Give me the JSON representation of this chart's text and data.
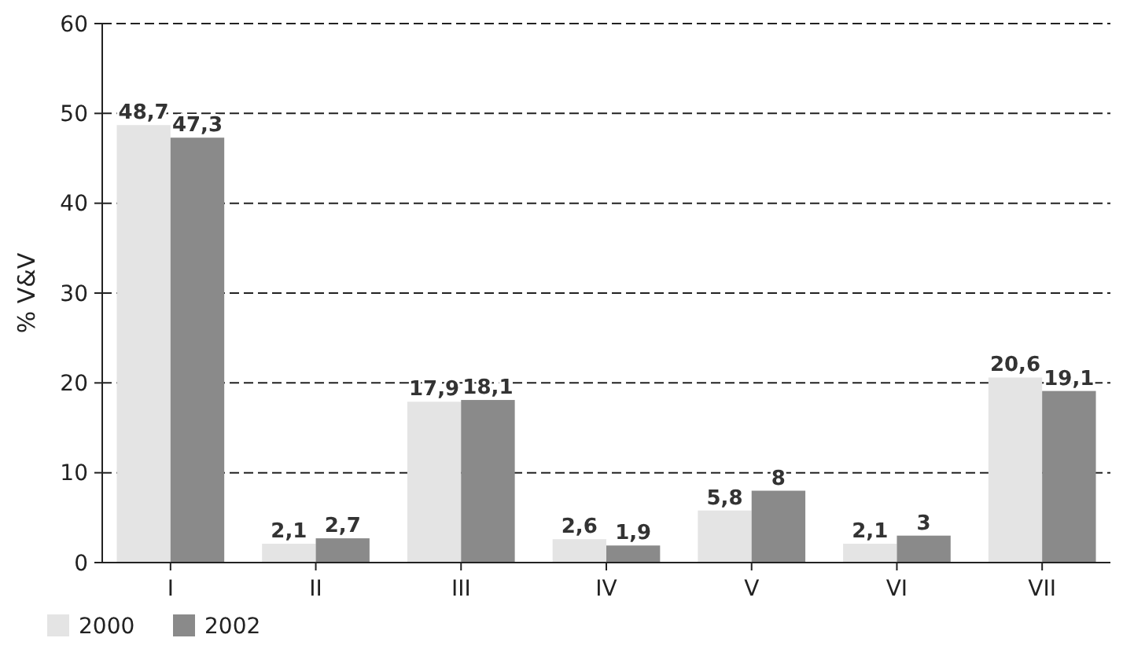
{
  "chart_data": {
    "type": "bar",
    "ylabel": "% V&V",
    "categories": [
      "I",
      "II",
      "III",
      "IV",
      "V",
      "VI",
      "VII"
    ],
    "series": [
      {
        "name": "2000",
        "color": "#e4e4e4",
        "values": [
          48.7,
          2.1,
          17.9,
          2.6,
          5.8,
          2.1,
          20.6
        ],
        "value_labels": [
          "48,7",
          "2,1",
          "17,9",
          "2,6",
          "5,8",
          "2,1",
          "20,6"
        ]
      },
      {
        "name": "2002",
        "color": "#8a8a8a",
        "values": [
          47.3,
          2.7,
          18.1,
          1.9,
          8,
          3,
          19.1
        ],
        "value_labels": [
          "47,3",
          "2,7",
          "18,1",
          "1,9",
          "8",
          "3",
          "19,1"
        ]
      }
    ],
    "ylim": [
      0,
      60
    ],
    "yticks": [
      0,
      10,
      20,
      30,
      40,
      50,
      60
    ],
    "grid": "y",
    "legend": "bottom left"
  }
}
